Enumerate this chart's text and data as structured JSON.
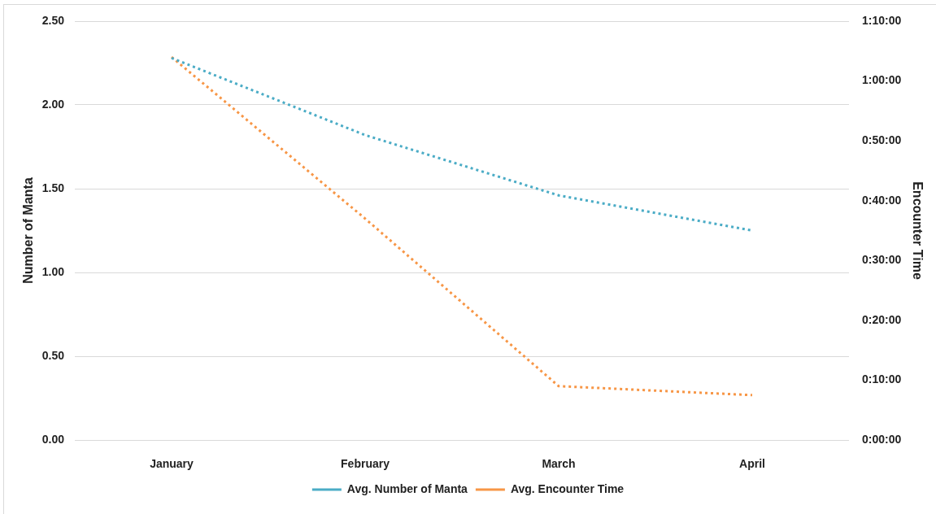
{
  "chart_data": {
    "type": "line",
    "categories": [
      "January",
      "February",
      "March",
      "April"
    ],
    "series": [
      {
        "name": "Avg. Number of Manta",
        "color": "#4bacc6",
        "values": [
          2.28,
          1.82,
          1.46,
          1.25
        ]
      },
      {
        "name": "Avg. Encounter Time",
        "color": "#f79646",
        "axis": "y2",
        "values": [
          64,
          37,
          9,
          7.5
        ]
      }
    ],
    "ylabel": "Number of Manta",
    "y2label": "Encounter Time",
    "ylim": [
      0,
      2.5
    ],
    "yticks": [
      {
        "value": 0,
        "label": "0.00"
      },
      {
        "value": 0.5,
        "label": "0.50"
      },
      {
        "value": 1,
        "label": "1.00"
      },
      {
        "value": 1.5,
        "label": "1.50"
      },
      {
        "value": 2,
        "label": "2.00"
      },
      {
        "value": 2.5,
        "label": "2.50"
      }
    ],
    "y2lim": [
      0,
      70
    ],
    "y2ticks": [
      {
        "value": 0,
        "label": "0:00:00"
      },
      {
        "value": 10,
        "label": "0:10:00"
      },
      {
        "value": 20,
        "label": "0:20:00"
      },
      {
        "value": 30,
        "label": "0:30:00"
      },
      {
        "value": 40,
        "label": "0:40:00"
      },
      {
        "value": 50,
        "label": "0:50:00"
      },
      {
        "value": 60,
        "label": "1:00:00"
      },
      {
        "value": 70,
        "label": "1:10:00"
      }
    ],
    "grid": "y",
    "legend": "bottom",
    "line_style": "dotted"
  }
}
